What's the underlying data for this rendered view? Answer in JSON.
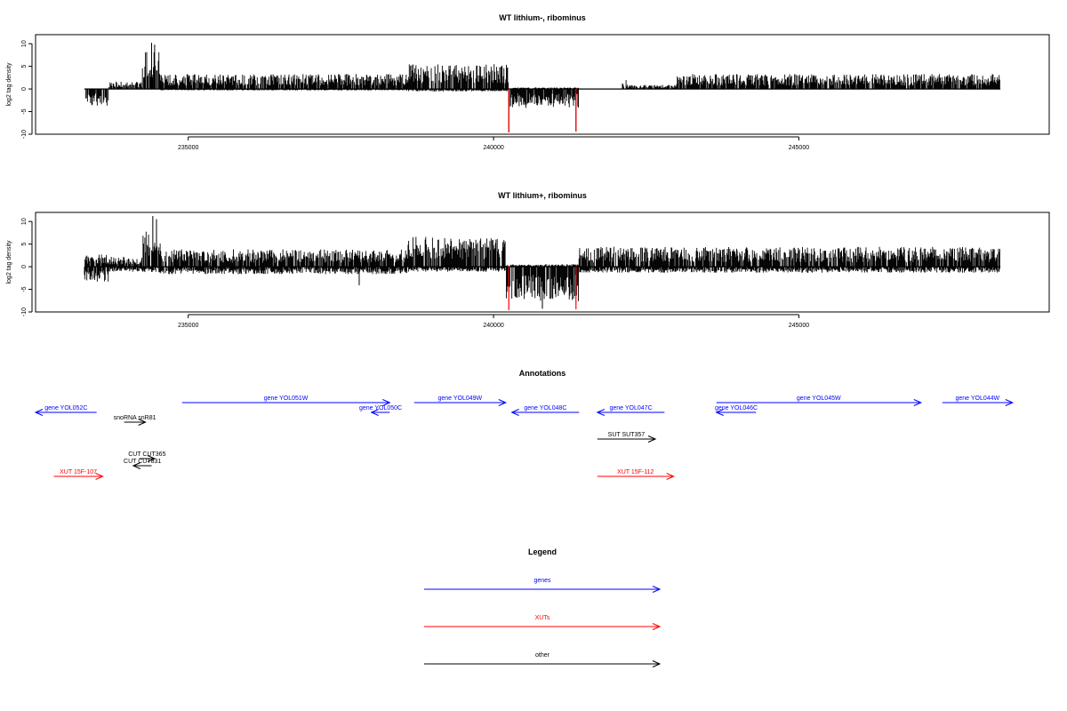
{
  "chart_data": [
    {
      "type": "bar",
      "title": "WT lithium-, ribominus",
      "ylabel": "log2 tag density",
      "xlim": [
        232500,
        249100
      ],
      "ylim": [
        -10,
        12
      ],
      "yticks": [
        10,
        5,
        0,
        -5,
        -10
      ],
      "ytick_labels": [
        "10",
        "5",
        "0",
        "-5",
        "-10"
      ],
      "xticks": [
        235000,
        240000,
        245000
      ],
      "xtick_labels": [
        "235000",
        "240000",
        "245000"
      ],
      "highlight_color": "#ff0000",
      "bar_color": "#000000",
      "peaks": [
        {
          "x": 234400,
          "y": 10.2
        },
        {
          "x": 234450,
          "y": 9.8
        },
        {
          "x": 240250,
          "y": -9.6
        },
        {
          "x": 241350,
          "y": -9.4
        }
      ],
      "segments": [
        {
          "start": 233300,
          "end": 233700,
          "pos": 0.0,
          "neg": 3.6
        },
        {
          "start": 233700,
          "end": 234250,
          "pos": 1.5,
          "neg": 0.0
        },
        {
          "start": 234250,
          "end": 234550,
          "pos": 7.5,
          "neg": 0.0
        },
        {
          "start": 234550,
          "end": 238600,
          "pos": 3.0,
          "neg": 0.3
        },
        {
          "start": 238600,
          "end": 240250,
          "pos": 5.0,
          "neg": 0.5
        },
        {
          "start": 240250,
          "end": 241400,
          "pos": 0.3,
          "neg": 3.8
        },
        {
          "start": 241400,
          "end": 242100,
          "pos": 0.0,
          "neg": 0.0
        },
        {
          "start": 242100,
          "end": 242200,
          "pos": 2.0,
          "neg": 0.0
        },
        {
          "start": 242200,
          "end": 243000,
          "pos": 0.8,
          "neg": 0.0
        },
        {
          "start": 243000,
          "end": 248300,
          "pos": 3.0,
          "neg": 0.0
        }
      ],
      "highlights": [
        {
          "x": 240250,
          "y": -9.6
        },
        {
          "x": 241350,
          "y": -9.4
        }
      ]
    },
    {
      "type": "bar",
      "title": "WT lithium+, ribominus",
      "ylabel": "log2 tag density",
      "xlim": [
        232500,
        249100
      ],
      "ylim": [
        -10,
        12
      ],
      "yticks": [
        10,
        5,
        0,
        -5,
        -10
      ],
      "ytick_labels": [
        "10",
        "5",
        "0",
        "-5",
        "-10"
      ],
      "xticks": [
        235000,
        240000,
        245000
      ],
      "xtick_labels": [
        "235000",
        "240000",
        "245000"
      ],
      "highlight_color": "#ff0000",
      "bar_color": "#000000",
      "peaks": [
        {
          "x": 234420,
          "y": 11.2
        },
        {
          "x": 234480,
          "y": 10.5
        },
        {
          "x": 240800,
          "y": -9.3
        },
        {
          "x": 237800,
          "y": -4.1
        }
      ],
      "segments": [
        {
          "start": 233300,
          "end": 233700,
          "pos": 2.5,
          "neg": 3.0
        },
        {
          "start": 233700,
          "end": 234250,
          "pos": 2.0,
          "neg": 1.0
        },
        {
          "start": 234250,
          "end": 234550,
          "pos": 8.0,
          "neg": 1.2
        },
        {
          "start": 234550,
          "end": 238600,
          "pos": 3.5,
          "neg": 1.5
        },
        {
          "start": 238600,
          "end": 240200,
          "pos": 6.0,
          "neg": 1.0
        },
        {
          "start": 240200,
          "end": 241400,
          "pos": 0.5,
          "neg": 7.0
        },
        {
          "start": 241400,
          "end": 248300,
          "pos": 4.0,
          "neg": 1.2
        }
      ],
      "highlights": [
        {
          "x": 240250,
          "y": -9.6
        },
        {
          "x": 241350,
          "y": -9.4
        }
      ]
    }
  ],
  "annotations": {
    "title": "Annotations",
    "xlim": [
      232500,
      249100
    ],
    "features": [
      {
        "label": "gene YOL052C",
        "start": 232500,
        "end": 233500,
        "strand": "-",
        "color": "#0000ff",
        "row": 1
      },
      {
        "label": "gene YOL051W",
        "start": 234900,
        "end": 238300,
        "strand": "+",
        "color": "#0000ff",
        "row": 0
      },
      {
        "label": "gene YOL050C",
        "start": 238000,
        "end": 238300,
        "strand": "-",
        "color": "#0000ff",
        "row": 1
      },
      {
        "label": "gene YOL049W",
        "start": 238700,
        "end": 240200,
        "strand": "+",
        "color": "#0000ff",
        "row": 0
      },
      {
        "label": "gene YOL048C",
        "start": 240300,
        "end": 241400,
        "strand": "-",
        "color": "#0000ff",
        "row": 1
      },
      {
        "label": "gene YOL047C",
        "start": 241700,
        "end": 242800,
        "strand": "-",
        "color": "#0000ff",
        "row": 1
      },
      {
        "label": "gene YOL046C",
        "start": 243650,
        "end": 244300,
        "strand": "-",
        "color": "#0000ff",
        "row": 1
      },
      {
        "label": "gene YOL045W",
        "start": 243650,
        "end": 247000,
        "strand": "+",
        "color": "#0000ff",
        "row": 0
      },
      {
        "label": "gene YOL044W",
        "start": 247350,
        "end": 248500,
        "strand": "+",
        "color": "#0000ff",
        "row": 0
      },
      {
        "label": "snoRNA snR81",
        "start": 233950,
        "end": 234300,
        "strand": "+",
        "color": "#000000",
        "row": 2
      },
      {
        "label": "SUT SUT357",
        "start": 241700,
        "end": 242650,
        "strand": "+",
        "color": "#000000",
        "row": 3
      },
      {
        "label": "CUT CUT365",
        "start": 234200,
        "end": 234450,
        "strand": "+",
        "color": "#000000",
        "row": 4
      },
      {
        "label": "CUT CUT831",
        "start": 234100,
        "end": 234400,
        "strand": "-",
        "color": "#000000",
        "row": 5
      },
      {
        "label": "XUT 15F-107",
        "start": 232800,
        "end": 233600,
        "strand": "+",
        "color": "#ff0000",
        "row": 6
      },
      {
        "label": "XUT 15F-112",
        "start": 241700,
        "end": 242950,
        "strand": "+",
        "color": "#ff0000",
        "row": 6
      }
    ]
  },
  "legend": {
    "title": "Legend",
    "entries": [
      {
        "label": "genes",
        "color": "#0000ff"
      },
      {
        "label": "XUTs",
        "color": "#ff0000"
      },
      {
        "label": "other",
        "color": "#000000"
      }
    ]
  }
}
